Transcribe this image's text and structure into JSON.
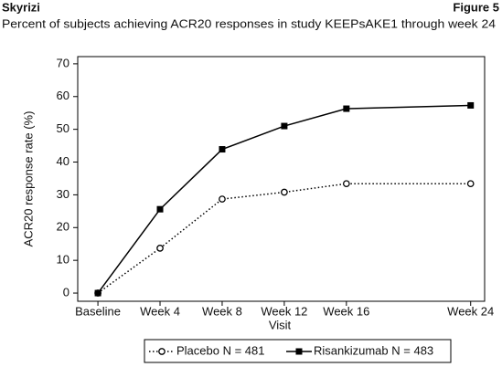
{
  "header": {
    "left": "Skyrizi",
    "right": "Figure 5"
  },
  "chart_data": {
    "type": "line",
    "title": "Percent of subjects achieving ACR20 responses in study KEEPsAKE1 through week 24",
    "x_label": "Visit",
    "y_label": "ACR20 response rate (%)",
    "x": [
      0,
      4,
      8,
      12,
      16,
      24
    ],
    "xlim": [
      -1.3,
      24.9
    ],
    "xticks": [
      {
        "value": 0,
        "label": "Baseline"
      },
      {
        "value": 4,
        "label": "Week 4"
      },
      {
        "value": 8,
        "label": "Week 8"
      },
      {
        "value": 12,
        "label": "Week 12"
      },
      {
        "value": 16,
        "label": "Week 16"
      },
      {
        "value": 24,
        "label": "Week 24"
      }
    ],
    "ylim": [
      -2.5,
      72.2
    ],
    "yticks": [
      0,
      10,
      20,
      30,
      40,
      50,
      60,
      70
    ],
    "legend": "bottom",
    "series": [
      {
        "name": "Placebo N = 481",
        "color": "#000000",
        "line_style": "dotted",
        "marker": "open-circle",
        "values": [
          0,
          13.7,
          28.7,
          30.8,
          33.4,
          33.4
        ]
      },
      {
        "name": "Risankizumab N = 483",
        "color": "#000000",
        "line_style": "solid",
        "marker": "filled-square",
        "values": [
          0,
          25.6,
          43.9,
          51.0,
          56.3,
          57.3
        ]
      }
    ]
  }
}
